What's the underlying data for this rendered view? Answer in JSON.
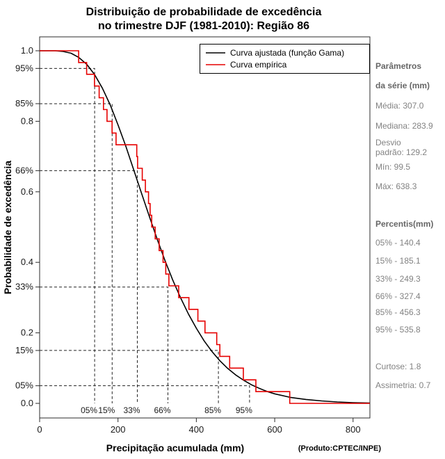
{
  "title": {
    "line1": "Distribuição de probabilidade de excedência",
    "line2": "no trimestre DJF (1981-2010): Região 86"
  },
  "credit": "(Produto:CPTEC/INPE)",
  "sidebar": {
    "header1": "Parâmetros",
    "header2": "da série (mm)",
    "mean": "Média: 307.0",
    "median": "Mediana: 283.9",
    "std_line1": "Desvio",
    "std_line2": "padrão: 129.2",
    "min": "Mín: 99.5",
    "max": "Máx: 638.3",
    "percentiles_header": "Percentis(mm)",
    "p05": "05% - 140.4",
    "p15": "15% - 185.1",
    "p33": "33% - 249.3",
    "p66": "66% - 327.4",
    "p85": "85% - 456.3",
    "p95": "95% - 535.8",
    "kurtosis": "Curtose: 1.8",
    "skewness": "Assimetria: 0.7"
  },
  "chart_data": {
    "type": "line",
    "title": "Distribuição de probabilidade de excedência no trimestre DJF (1981-2010): Região 86",
    "xlabel": "Precipitação acumulada (mm)",
    "ylabel": "Probabilidade de excedência",
    "xlim": [
      0,
      843
    ],
    "ylim": [
      0,
      1
    ],
    "x_ticks": [
      0,
      200,
      400,
      600,
      800
    ],
    "y_ticks": [
      {
        "value": 1.0,
        "label": "1.0"
      },
      {
        "value": 0.95,
        "label": "95%"
      },
      {
        "value": 0.85,
        "label": "85%"
      },
      {
        "value": 0.8,
        "label": "0.8"
      },
      {
        "value": 0.66,
        "label": "66%"
      },
      {
        "value": 0.6,
        "label": "0.6"
      },
      {
        "value": 0.4,
        "label": "0.4"
      },
      {
        "value": 0.33,
        "label": "33%"
      },
      {
        "value": 0.2,
        "label": "0.2"
      },
      {
        "value": 0.15,
        "label": "15%"
      },
      {
        "value": 0.05,
        "label": "05%"
      },
      {
        "value": 0.0,
        "label": "0.0"
      }
    ],
    "legend_position": "top-right",
    "grid": false,
    "series": [
      {
        "name": "Curva ajustada (função Gama)",
        "color": "#000000",
        "style": "smooth",
        "distribution": {
          "family": "gamma",
          "mean": 307.0,
          "sd": 129.2
        },
        "points": [
          [
            0,
            1.0
          ],
          [
            40,
            1.0
          ],
          [
            60,
            0.998
          ],
          [
            80,
            0.993
          ],
          [
            100,
            0.981
          ],
          [
            120,
            0.962
          ],
          [
            140,
            0.933
          ],
          [
            160,
            0.894
          ],
          [
            180,
            0.847
          ],
          [
            200,
            0.79
          ],
          [
            220,
            0.729
          ],
          [
            240,
            0.663
          ],
          [
            260,
            0.596
          ],
          [
            280,
            0.53
          ],
          [
            300,
            0.466
          ],
          [
            320,
            0.405
          ],
          [
            340,
            0.349
          ],
          [
            360,
            0.299
          ],
          [
            380,
            0.253
          ],
          [
            400,
            0.213
          ],
          [
            420,
            0.177
          ],
          [
            440,
            0.147
          ],
          [
            460,
            0.121
          ],
          [
            480,
            0.099
          ],
          [
            500,
            0.081
          ],
          [
            520,
            0.066
          ],
          [
            540,
            0.053
          ],
          [
            560,
            0.043
          ],
          [
            580,
            0.034
          ],
          [
            600,
            0.027
          ],
          [
            640,
            0.017
          ],
          [
            680,
            0.011
          ],
          [
            720,
            0.007
          ],
          [
            760,
            0.004
          ],
          [
            800,
            0.002
          ],
          [
            843,
            0.001
          ]
        ]
      },
      {
        "name": "Curva empírica",
        "color": "#e60000",
        "style": "step-exceedance",
        "n": 30,
        "sorted_values": [
          99.5,
          120,
          140,
          152,
          163,
          172,
          185,
          195,
          248,
          250,
          262,
          270,
          278,
          282,
          286,
          295,
          305,
          315,
          322,
          330,
          355,
          381,
          404,
          422,
          452,
          460,
          485,
          520,
          552,
          638.3
        ]
      }
    ],
    "percentile_guides": [
      {
        "label": "05%",
        "exceedance": 0.95,
        "x": 140.4
      },
      {
        "label": "15%",
        "exceedance": 0.85,
        "x": 185.1
      },
      {
        "label": "33%",
        "exceedance": 0.66,
        "x": 249.3
      },
      {
        "label": "66%",
        "exceedance": 0.33,
        "x": 327.4
      },
      {
        "label": "85%",
        "exceedance": 0.15,
        "x": 456.3
      },
      {
        "label": "95%",
        "exceedance": 0.05,
        "x": 535.8
      }
    ]
  }
}
